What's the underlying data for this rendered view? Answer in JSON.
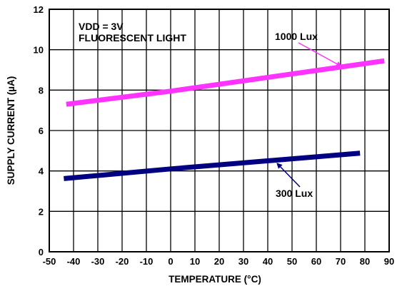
{
  "chart_data": {
    "type": "line",
    "title": "",
    "xlabel": "TEMPERATURE (°C)",
    "ylabel": "SUPPLY CURRENT (µA)",
    "xlim": [
      -50,
      90
    ],
    "ylim": [
      0,
      12
    ],
    "x_ticks": [
      -50,
      -40,
      -30,
      -20,
      -10,
      0,
      10,
      20,
      30,
      40,
      50,
      60,
      70,
      80,
      90
    ],
    "y_ticks": [
      0,
      2,
      4,
      6,
      8,
      10,
      12
    ],
    "grid": true,
    "annotations": [
      "VDD = 3V",
      "FLUORESCENT LIGHT"
    ],
    "series": [
      {
        "name": "1000 Lux",
        "color": "#ff33ff",
        "x": [
          -43,
          0,
          88
        ],
        "y": [
          7.3,
          7.95,
          9.45
        ]
      },
      {
        "name": "300 Lux",
        "color": "#000080",
        "x": [
          -44,
          0,
          78
        ],
        "y": [
          3.62,
          4.1,
          4.88
        ]
      }
    ]
  }
}
